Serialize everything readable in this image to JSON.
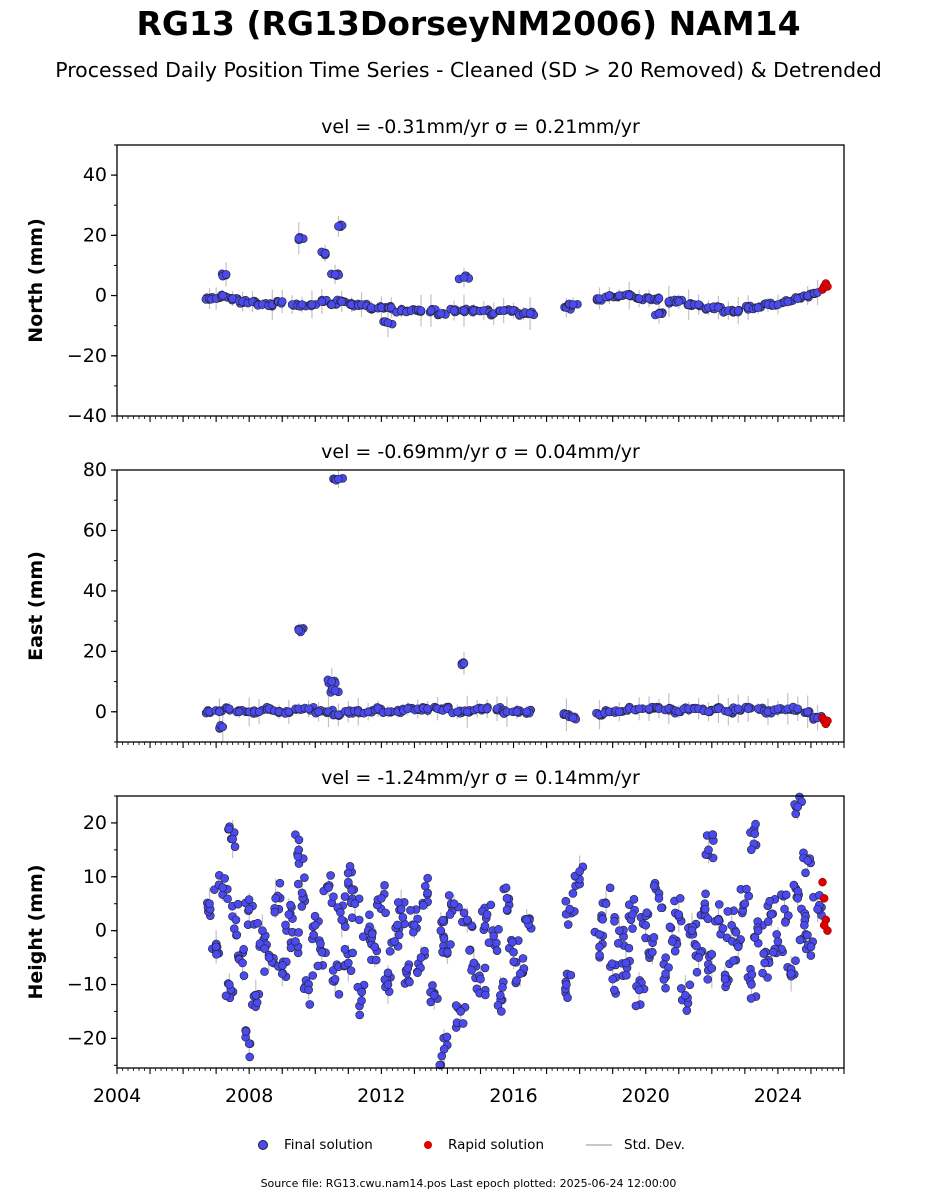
{
  "figure": {
    "title": "RG13 (RG13DorseyNM2006) NAM14",
    "subtitle": "Processed Daily Position Time Series - Cleaned (SD > 20 Removed) & Detrended",
    "source_note": "Source file: RG13.cwu.nam14.pos  Last epoch plotted: 2025-06-24 12:00:00"
  },
  "legend": {
    "final": "Final solution",
    "rapid": "Rapid solution",
    "std": "Std. Dev."
  },
  "colors": {
    "final": "#4a4af0",
    "rapid": "#e00000",
    "std_dev": "#b4b4b4"
  },
  "chart_data": [
    {
      "type": "scatter",
      "title": "vel = -0.31mm/yr   σ = 0.21mm/yr",
      "ylabel": "North (mm)",
      "xlabel": "",
      "xlim": [
        2004,
        2026
      ],
      "ylim": [
        -40,
        50
      ],
      "yticks": [
        -40,
        -20,
        0,
        20,
        40
      ],
      "xticks": [
        2004,
        2008,
        2012,
        2016,
        2020,
        2024
      ],
      "show_xtick_labels": false,
      "grid": false,
      "series": [
        {
          "name": "Final solution",
          "marker": "circle",
          "x": [
            2006.8,
            2007.0,
            2007.2,
            2007.5,
            2007.8,
            2008.1,
            2008.4,
            2008.7,
            2009.0,
            2009.3,
            2009.6,
            2009.9,
            2010.2,
            2010.5,
            2010.8,
            2011.1,
            2011.4,
            2011.7,
            2012.0,
            2012.3,
            2012.6,
            2012.9,
            2013.2,
            2013.5,
            2013.8,
            2014.2,
            2014.5,
            2014.8,
            2015.1,
            2015.4,
            2015.7,
            2016.0,
            2016.3,
            2016.5,
            2017.6,
            2017.8,
            2018.6,
            2018.9,
            2019.2,
            2019.5,
            2019.8,
            2020.1,
            2020.4,
            2020.7,
            2021.0,
            2021.3,
            2021.6,
            2021.9,
            2022.2,
            2022.5,
            2022.8,
            2023.1,
            2023.4,
            2023.7,
            2024.0,
            2024.3,
            2024.6,
            2024.9,
            2025.2,
            2007.3,
            2009.5,
            2010.3,
            2010.6,
            2010.7,
            2014.5,
            2012.2,
            2020.4
          ],
          "y": [
            -1,
            -1,
            0,
            -1,
            -2,
            -2,
            -3,
            -3,
            -2,
            -3,
            -3,
            -3,
            -2,
            -3,
            -2,
            -3,
            -3,
            -4,
            -4,
            -4,
            -5,
            -5,
            -5,
            -5,
            -6,
            -5,
            -5,
            -5,
            -5,
            -6,
            -5,
            -5,
            -6,
            -6,
            -4,
            -3,
            -1,
            0,
            0,
            0,
            -1,
            -1,
            -1,
            -2,
            -2,
            -3,
            -3,
            -4,
            -4,
            -5,
            -5,
            -4,
            -4,
            -3,
            -3,
            -2,
            -1,
            0,
            1,
            7,
            19,
            14,
            7,
            23,
            6,
            -9,
            -6
          ]
        },
        {
          "name": "Rapid solution",
          "marker": "circle",
          "x": [
            2025.35,
            2025.4,
            2025.45,
            2025.5
          ],
          "y": [
            2,
            3,
            4,
            3
          ]
        }
      ]
    },
    {
      "type": "scatter",
      "title": "vel = -0.69mm/yr   σ = 0.04mm/yr",
      "ylabel": "East (mm)",
      "xlabel": "",
      "xlim": [
        2004,
        2026
      ],
      "ylim": [
        -10,
        80
      ],
      "yticks": [
        0,
        20,
        40,
        60,
        80
      ],
      "xticks": [
        2004,
        2008,
        2012,
        2016,
        2020,
        2024
      ],
      "show_xtick_labels": false,
      "grid": false,
      "series": [
        {
          "name": "Final solution",
          "marker": "circle",
          "x": [
            2006.8,
            2007.1,
            2007.4,
            2007.7,
            2008.0,
            2008.3,
            2008.6,
            2008.9,
            2009.2,
            2009.5,
            2009.8,
            2010.1,
            2010.4,
            2010.7,
            2011.0,
            2011.3,
            2011.6,
            2011.9,
            2012.2,
            2012.5,
            2012.8,
            2013.1,
            2013.4,
            2013.7,
            2014.0,
            2014.3,
            2014.6,
            2014.9,
            2015.2,
            2015.5,
            2015.8,
            2016.1,
            2016.4,
            2017.6,
            2017.8,
            2018.6,
            2018.9,
            2019.2,
            2019.5,
            2019.8,
            2020.1,
            2020.4,
            2020.7,
            2021.0,
            2021.3,
            2021.6,
            2021.9,
            2022.2,
            2022.5,
            2022.8,
            2023.1,
            2023.4,
            2023.7,
            2024.0,
            2024.3,
            2024.6,
            2024.9,
            2025.2,
            2007.2,
            2009.5,
            2010.5,
            2010.6,
            2010.7,
            2014.5
          ],
          "y": [
            0,
            0,
            1,
            0,
            0,
            0,
            1,
            0,
            0,
            1,
            1,
            0,
            0,
            -1,
            0,
            0,
            0,
            1,
            0,
            0,
            1,
            1,
            1,
            1,
            1,
            0,
            0,
            1,
            1,
            1,
            0,
            0,
            0,
            -1,
            -2,
            -1,
            0,
            0,
            1,
            1,
            1,
            1,
            1,
            0,
            1,
            1,
            0,
            1,
            0,
            1,
            1,
            1,
            0,
            1,
            1,
            1,
            0,
            -2,
            -5,
            27,
            10,
            7,
            77,
            16
          ]
        },
        {
          "name": "Rapid solution",
          "marker": "circle",
          "x": [
            2025.35,
            2025.4,
            2025.45,
            2025.5
          ],
          "y": [
            -2,
            -3,
            -4,
            -3
          ]
        }
      ]
    },
    {
      "type": "scatter",
      "title": "vel = -1.24mm/yr   σ = 0.14mm/yr",
      "ylabel": "Height (mm)",
      "xlabel": "",
      "xlim": [
        2004,
        2026
      ],
      "ylim": [
        -25.5,
        25
      ],
      "yticks": [
        -20,
        -10,
        0,
        10,
        20
      ],
      "xticks": [
        2004,
        2008,
        2012,
        2016,
        2020,
        2024
      ],
      "show_xtick_labels": true,
      "grid": false,
      "series": [
        {
          "name": "Final solution",
          "marker": "circle",
          "x": [
            2006.8,
            2007.0,
            2007.2,
            2007.4,
            2007.6,
            2007.8,
            2008.0,
            2008.2,
            2008.4,
            2008.6,
            2008.8,
            2009.0,
            2009.2,
            2009.4,
            2009.6,
            2009.8,
            2010.0,
            2010.2,
            2010.4,
            2010.6,
            2010.8,
            2011.0,
            2011.2,
            2011.4,
            2011.6,
            2011.8,
            2012.0,
            2012.2,
            2012.4,
            2012.6,
            2012.8,
            2013.0,
            2013.2,
            2013.4,
            2013.6,
            2013.8,
            2014.0,
            2014.2,
            2014.4,
            2014.6,
            2014.8,
            2015.0,
            2015.2,
            2015.4,
            2015.6,
            2015.8,
            2016.0,
            2016.2,
            2016.4,
            2017.6,
            2017.7,
            2018.6,
            2018.8,
            2019.0,
            2019.2,
            2019.4,
            2019.6,
            2019.8,
            2020.0,
            2020.2,
            2020.4,
            2020.6,
            2020.8,
            2021.0,
            2021.2,
            2021.4,
            2021.6,
            2021.8,
            2022.0,
            2022.2,
            2022.4,
            2022.6,
            2022.8,
            2023.0,
            2023.2,
            2023.4,
            2023.6,
            2023.8,
            2024.0,
            2024.2,
            2024.4,
            2024.6,
            2024.8,
            2025.0,
            2025.2,
            2007.5,
            2008.0,
            2009.5,
            2011.0,
            2013.9,
            2018.0,
            2021.9,
            2023.3,
            2024.6,
            2024.9
          ],
          "y": [
            5,
            -3,
            8,
            -10,
            2,
            -6,
            4,
            -12,
            0,
            -5,
            6,
            -8,
            3,
            -2,
            7,
            -11,
            1,
            -4,
            8,
            -9,
            2,
            -6,
            5,
            -13,
            0,
            -3,
            6,
            -10,
            -2,
            4,
            -7,
            1,
            -5,
            7,
            -12,
            0,
            -4,
            5,
            -15,
            2,
            -6,
            -9,
            3,
            -1,
            -12,
            6,
            -4,
            -8,
            2,
            -10,
            4,
            -3,
            5,
            -9,
            0,
            -6,
            3,
            -11,
            1,
            -4,
            6,
            -8,
            -2,
            3,
            -12,
            0,
            -5,
            4,
            -7,
            2,
            -9,
            1,
            -3,
            5,
            -10,
            0,
            -6,
            3,
            -2,
            4,
            -8,
            6,
            1,
            -3,
            4,
            17,
            -21,
            15,
            9,
            -22,
            11,
            15,
            18,
            23,
            13
          ]
        },
        {
          "name": "Rapid solution",
          "marker": "circle",
          "x": [
            2025.35,
            2025.4,
            2025.45,
            2025.5,
            2025.4
          ],
          "y": [
            9,
            6,
            2,
            0,
            1
          ]
        }
      ]
    }
  ]
}
